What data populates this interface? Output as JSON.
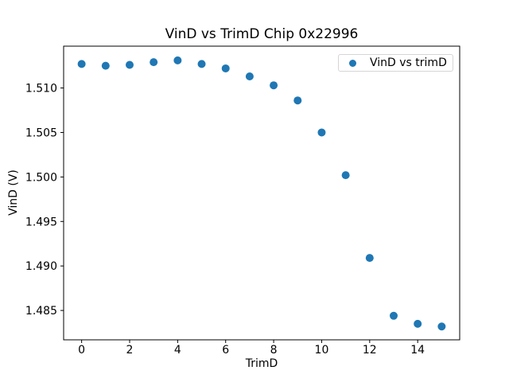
{
  "chart_data": {
    "type": "scatter",
    "title": "VinD vs TrimD Chip 0x22996",
    "xlabel": "TrimD",
    "ylabel": "VinD (V)",
    "legend": {
      "label": "VinD vs trimD",
      "position": "upper right"
    },
    "marker_color": "#1f77b4",
    "axis_color": "#000000",
    "background_color": "#ffffff",
    "grid": false,
    "x": [
      0,
      1,
      2,
      3,
      4,
      5,
      6,
      7,
      8,
      9,
      10,
      11,
      12,
      13,
      14,
      15
    ],
    "y": [
      1.5127,
      1.5125,
      1.5126,
      1.5129,
      1.5131,
      1.5127,
      1.5122,
      1.5113,
      1.5103,
      1.5086,
      1.505,
      1.5002,
      1.4909,
      1.4844,
      1.4835,
      1.4832
    ],
    "series": [
      {
        "name": "VinD vs trimD",
        "x": [
          0,
          1,
          2,
          3,
          4,
          5,
          6,
          7,
          8,
          9,
          10,
          11,
          12,
          13,
          14,
          15
        ],
        "y": [
          1.5127,
          1.5125,
          1.5126,
          1.5129,
          1.5131,
          1.5127,
          1.5122,
          1.5113,
          1.5103,
          1.5086,
          1.505,
          1.5002,
          1.4909,
          1.4844,
          1.4835,
          1.4832
        ]
      }
    ],
    "xlim": [
      -0.75,
      15.75
    ],
    "ylim": [
      1.4817,
      1.5147
    ],
    "xticks": {
      "values": [
        0,
        2,
        4,
        6,
        8,
        10,
        12,
        14
      ],
      "labels": [
        "0",
        "2",
        "4",
        "6",
        "8",
        "10",
        "12",
        "14"
      ]
    },
    "yticks": {
      "values": [
        1.485,
        1.49,
        1.495,
        1.5,
        1.505,
        1.51
      ],
      "labels": [
        "1.485",
        "1.490",
        "1.495",
        "1.500",
        "1.505",
        "1.510"
      ]
    }
  }
}
